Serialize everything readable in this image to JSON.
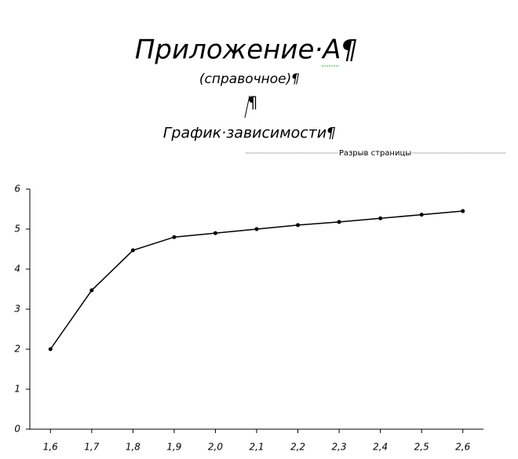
{
  "header": {
    "title": "Приложение·А¶",
    "subtitle": "(справочное)¶",
    "mark": "¶",
    "caption": "График·зависимости¶",
    "page_break": "Разрыв страницы"
  },
  "chart_data": {
    "type": "line",
    "x": [
      1.6,
      1.7,
      1.8,
      1.9,
      2.0,
      2.1,
      2.2,
      2.3,
      2.4,
      2.5,
      2.6
    ],
    "series": [
      {
        "color": "#000000",
        "values": [
          2.0,
          3.47,
          4.47,
          4.8,
          4.9,
          5.0,
          5.1,
          5.18,
          5.27,
          5.36,
          5.45
        ]
      }
    ],
    "xlim": [
      1.55,
      2.65
    ],
    "ylim": [
      0,
      6
    ],
    "xticks": [
      {
        "value": 1.6,
        "label": "1,6"
      },
      {
        "value": 1.7,
        "label": "1,7"
      },
      {
        "value": 1.8,
        "label": "1,8"
      },
      {
        "value": 1.9,
        "label": "1,9"
      },
      {
        "value": 2.0,
        "label": "2,0"
      },
      {
        "value": 2.1,
        "label": "2,1"
      },
      {
        "value": 2.2,
        "label": "2,2"
      },
      {
        "value": 2.3,
        "label": "2,3"
      },
      {
        "value": 2.4,
        "label": "2,4"
      },
      {
        "value": 2.5,
        "label": "2,5"
      },
      {
        "value": 2.6,
        "label": "2,6"
      }
    ],
    "yticks": [
      0,
      1,
      2,
      3,
      4,
      5,
      6
    ]
  }
}
